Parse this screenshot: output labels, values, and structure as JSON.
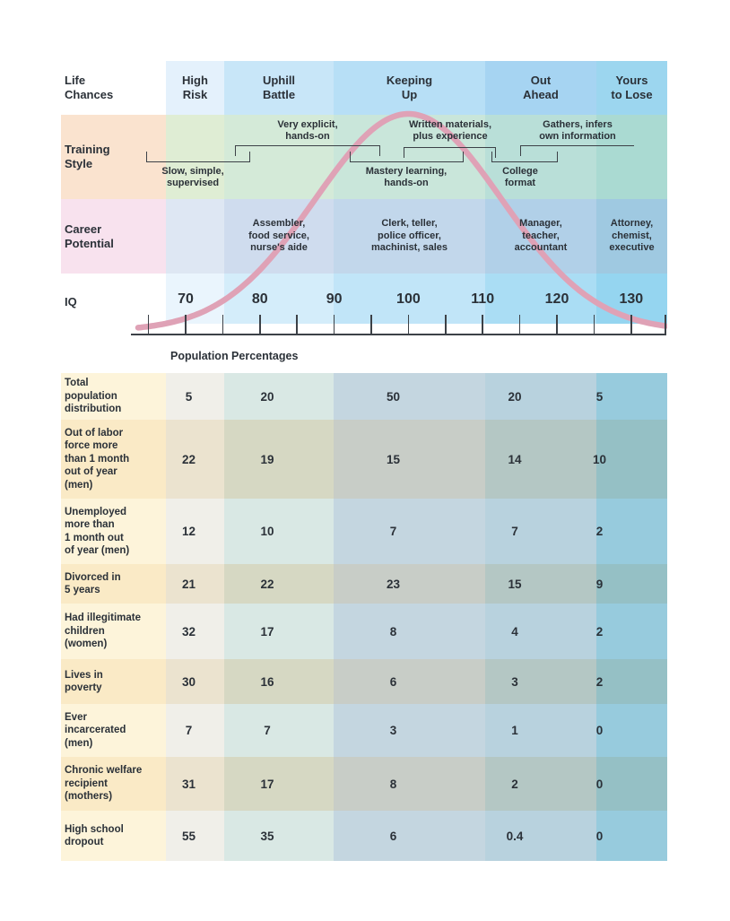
{
  "colors": {
    "curve_pink": "#dfa2b6",
    "text": "#2b3138",
    "line": "#3c4147"
  },
  "life_chances": {
    "label": "Life\nChances",
    "categories": [
      "High\nRisk",
      "Uphill\nBattle",
      "Keeping\nUp",
      "Out\nAhead",
      "Yours\nto Lose"
    ]
  },
  "training_style": {
    "label": "Training\nStyle",
    "brackets": {
      "slow": "Slow, simple,\nsupervised",
      "very_explicit": "Very explicit,\nhands-on",
      "mastery": "Mastery learning,\nhands-on",
      "written": "Written materials,\nplus experience",
      "college": "College\nformat",
      "gathers": "Gathers, infers\nown information"
    }
  },
  "career_potential": {
    "label": "Career\nPotential",
    "careers": [
      "Assembler,\nfood service,\nnurse's aide",
      "Clerk, teller,\npolice officer,\nmachinist, sales",
      "Manager,\nteacher,\naccountant",
      "Attorney,\nchemist,\nexecutive"
    ]
  },
  "iq_axis": {
    "label": "IQ",
    "tick_labels": [
      "70",
      "80",
      "90",
      "100",
      "110",
      "120",
      "130"
    ],
    "tick_min": 65,
    "tick_max": 135,
    "tick_step": 5
  },
  "population_heading": "Population Percentages",
  "table": {
    "rows": [
      {
        "label": "Total\npopulation\ndistribution",
        "values": [
          "5",
          "20",
          "50",
          "20",
          "5"
        ]
      },
      {
        "label": "Out of labor\nforce more\nthan 1 month\nout of year\n(men)",
        "values": [
          "22",
          "19",
          "15",
          "14",
          "10"
        ]
      },
      {
        "label": "Unemployed\nmore than\n1 month out\nof year (men)",
        "values": [
          "12",
          "10",
          "7",
          "7",
          "2"
        ]
      },
      {
        "label": "Divorced in\n5 years",
        "values": [
          "21",
          "22",
          "23",
          "15",
          "9"
        ]
      },
      {
        "label": "Had illegitimate\nchildren\n(women)",
        "values": [
          "32",
          "17",
          "8",
          "4",
          "2"
        ]
      },
      {
        "label": "Lives in\npoverty",
        "values": [
          "30",
          "16",
          "6",
          "3",
          "2"
        ]
      },
      {
        "label": "Ever\nincarcerated\n(men)",
        "values": [
          "7",
          "7",
          "3",
          "1",
          "0"
        ]
      },
      {
        "label": "Chronic welfare\nrecipient\n(mothers)",
        "values": [
          "31",
          "17",
          "8",
          "2",
          "0"
        ]
      },
      {
        "label": "High school\ndropout",
        "values": [
          "55",
          "35",
          "6",
          "0.4",
          "0"
        ]
      }
    ]
  },
  "chart_data": [
    {
      "type": "line",
      "title": "IQ normal distribution (bell curve)",
      "xlabel": "IQ",
      "x_ticks_labeled": [
        70,
        80,
        90,
        100,
        110,
        120,
        130
      ],
      "x_tick_minor_step": 5,
      "x_tick_range": [
        65,
        135
      ],
      "curve": {
        "shape": "normal",
        "mean": 100,
        "peak_iq": 100
      },
      "column_band_edges_iq": [
        75,
        90,
        110,
        125
      ],
      "bands": [
        "High Risk",
        "Uphill Battle",
        "Keeping Up",
        "Out Ahead",
        "Yours to Lose"
      ]
    },
    {
      "type": "table",
      "title": "Population Percentages",
      "categories": [
        "High Risk",
        "Uphill Battle",
        "Keeping Up",
        "Out Ahead",
        "Yours to Lose"
      ],
      "series": [
        {
          "name": "Total population distribution",
          "values": [
            5,
            20,
            50,
            20,
            5
          ]
        },
        {
          "name": "Out of labor force more than 1 month out of year (men)",
          "values": [
            22,
            19,
            15,
            14,
            10
          ]
        },
        {
          "name": "Unemployed more than 1 month out of year (men)",
          "values": [
            12,
            10,
            7,
            7,
            2
          ]
        },
        {
          "name": "Divorced in 5 years",
          "values": [
            21,
            22,
            23,
            15,
            9
          ]
        },
        {
          "name": "Had illegitimate children (women)",
          "values": [
            32,
            17,
            8,
            4,
            2
          ]
        },
        {
          "name": "Lives in poverty",
          "values": [
            30,
            16,
            6,
            3,
            2
          ]
        },
        {
          "name": "Ever incarcerated (men)",
          "values": [
            7,
            7,
            3,
            1,
            0
          ]
        },
        {
          "name": "Chronic welfare recipient (mothers)",
          "values": [
            31,
            17,
            8,
            2,
            0
          ]
        },
        {
          "name": "High school dropout",
          "values": [
            55,
            35,
            6,
            0.4,
            0
          ]
        }
      ]
    }
  ]
}
